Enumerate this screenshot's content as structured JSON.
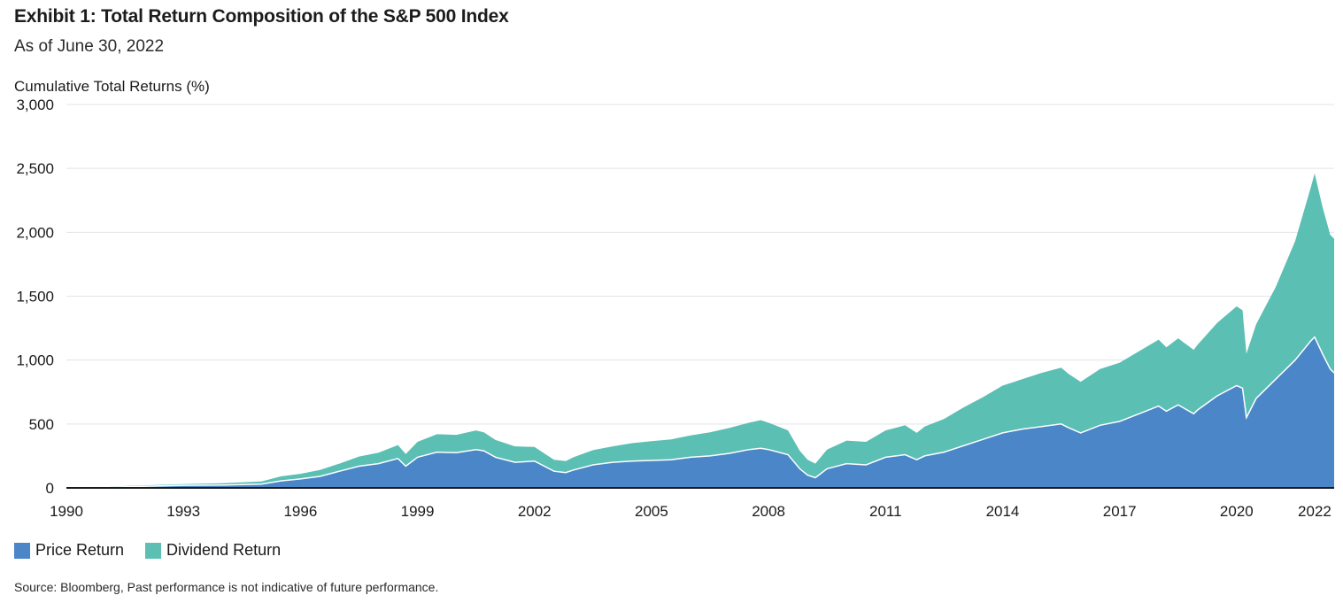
{
  "title": "Exhibit 1: Total Return Composition of the S&P 500 Index",
  "subtitle": "As of June 30, 2022",
  "source": "Source: Bloomberg, Past performance is not indicative of future performance.",
  "colors": {
    "price": "#4a86c8",
    "dividend": "#5bbfb3",
    "grid": "#e3e3e3",
    "axis": "#1a1a1a"
  },
  "chart_data": {
    "type": "area",
    "stacked": true,
    "ylabel": "Cumulative Total Returns (%)",
    "xlabel": "",
    "ylim": [
      0,
      3000
    ],
    "xlim": [
      1990.0,
      2022.5
    ],
    "y_ticks": [
      0,
      500,
      1000,
      1500,
      2000,
      2500,
      3000
    ],
    "y_tick_labels": [
      "0",
      "500",
      "1,000",
      "1,500",
      "2,000",
      "2,500",
      "3,000"
    ],
    "x_ticks": [
      1990,
      1993,
      1996,
      1999,
      2002,
      2005,
      2008,
      2011,
      2014,
      2017,
      2020,
      2022
    ],
    "x_tick_labels": [
      "1990",
      "1993",
      "1996",
      "1999",
      "2002",
      "2005",
      "2008",
      "2011",
      "2014",
      "2017",
      "2020",
      "2022"
    ],
    "grid": true,
    "legend_position": "bottom-left",
    "x": [
      1990.0,
      1991.0,
      1992.0,
      1993.0,
      1994.0,
      1995.0,
      1995.5,
      1996.0,
      1996.5,
      1997.0,
      1997.5,
      1998.0,
      1998.5,
      1998.7,
      1999.0,
      1999.5,
      2000.0,
      2000.5,
      2000.7,
      2001.0,
      2001.5,
      2002.0,
      2002.5,
      2002.8,
      2003.0,
      2003.5,
      2004.0,
      2004.5,
      2005.0,
      2005.5,
      2006.0,
      2006.5,
      2007.0,
      2007.5,
      2007.8,
      2008.0,
      2008.5,
      2008.8,
      2009.0,
      2009.2,
      2009.5,
      2010.0,
      2010.5,
      2011.0,
      2011.5,
      2011.8,
      2012.0,
      2012.5,
      2013.0,
      2013.5,
      2014.0,
      2014.5,
      2015.0,
      2015.5,
      2015.7,
      2016.0,
      2016.5,
      2017.0,
      2017.5,
      2018.0,
      2018.2,
      2018.5,
      2018.9,
      2019.0,
      2019.5,
      2020.0,
      2020.15,
      2020.25,
      2020.5,
      2021.0,
      2021.5,
      2021.9,
      2022.0,
      2022.2,
      2022.4,
      2022.5
    ],
    "series": [
      {
        "name": "Price Return",
        "values": [
          0,
          5,
          12,
          20,
          22,
          30,
          55,
          70,
          90,
          130,
          170,
          190,
          230,
          170,
          240,
          280,
          275,
          300,
          290,
          240,
          200,
          210,
          130,
          120,
          140,
          180,
          200,
          210,
          215,
          220,
          240,
          250,
          270,
          300,
          310,
          300,
          260,
          150,
          100,
          80,
          150,
          190,
          180,
          240,
          260,
          220,
          250,
          280,
          330,
          380,
          430,
          460,
          480,
          500,
          470,
          430,
          490,
          520,
          580,
          640,
          600,
          650,
          580,
          610,
          720,
          800,
          780,
          550,
          700,
          850,
          1000,
          1150,
          1180,
          1050,
          930,
          900
        ]
      },
      {
        "name": "Dividend Return",
        "values": [
          0,
          5,
          8,
          10,
          15,
          20,
          35,
          40,
          50,
          60,
          75,
          85,
          105,
          95,
          120,
          140,
          140,
          150,
          145,
          135,
          125,
          110,
          90,
          90,
          100,
          115,
          125,
          140,
          150,
          160,
          170,
          185,
          200,
          210,
          220,
          210,
          190,
          140,
          120,
          110,
          150,
          180,
          180,
          210,
          230,
          210,
          230,
          260,
          300,
          330,
          370,
          390,
          420,
          440,
          420,
          400,
          440,
          460,
          490,
          520,
          500,
          520,
          500,
          510,
          570,
          620,
          610,
          500,
          580,
          720,
          930,
          1200,
          1280,
          1150,
          1050,
          1050
        ]
      }
    ]
  }
}
